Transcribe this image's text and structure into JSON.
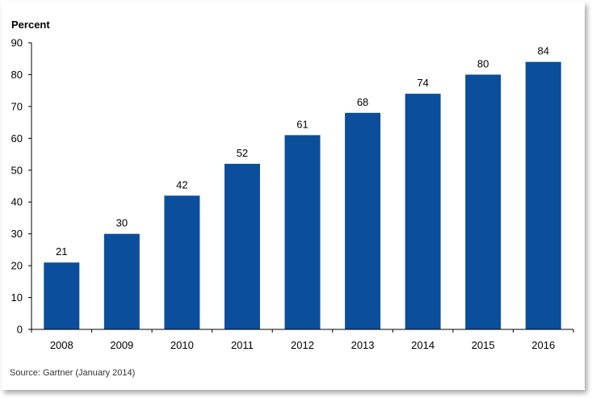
{
  "chart_data": {
    "type": "bar",
    "ylabel": "Percent",
    "xlabel": "",
    "categories": [
      "2008",
      "2009",
      "2010",
      "2011",
      "2012",
      "2013",
      "2014",
      "2015",
      "2016"
    ],
    "values": [
      21,
      30,
      42,
      52,
      61,
      68,
      74,
      80,
      84
    ],
    "data_labels": [
      "21",
      "30",
      "42",
      "52",
      "61",
      "68",
      "74",
      "80",
      "84"
    ],
    "ylim": [
      0,
      90
    ],
    "yticks": [
      "0",
      "10",
      "20",
      "30",
      "40",
      "50",
      "60",
      "70",
      "80",
      "90"
    ],
    "grid": false,
    "bar_color": "#0b4e9b"
  },
  "source": "Source: Gartner (January 2014)"
}
